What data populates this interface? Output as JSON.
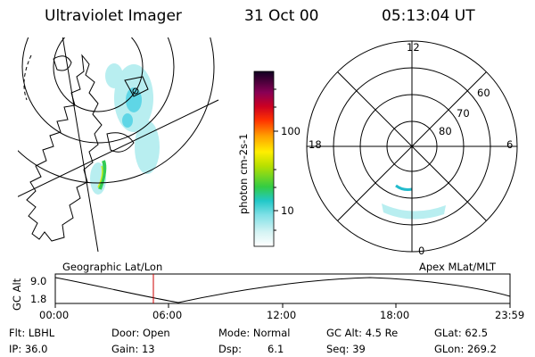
{
  "header": {
    "title": "Ultraviolet Imager",
    "date": "31 Oct 00",
    "time": "05:13:04 UT"
  },
  "colorbar": {
    "ticks": [
      "100",
      "10"
    ],
    "unit_label": "photon cm-2s-1"
  },
  "polar_plot": {
    "mlt_labels": [
      "12",
      "18",
      "6",
      "0"
    ],
    "lat_labels": [
      "60",
      "70",
      "80"
    ]
  },
  "altitude_panel": {
    "ylabel": "GC Alt",
    "y_ticks": [
      "9.0",
      "1.8"
    ],
    "left_caption": "Geographic Lat/Lon",
    "right_caption": "Apex MLat/MLT",
    "time_ticks": [
      "00:00",
      "06:00",
      "12:00",
      "18:00",
      "23:59"
    ]
  },
  "status": {
    "filter": "Flt: LBHL",
    "door": "Door: Open",
    "mode": "Mode: Normal",
    "gc_alt": "GC Alt: 4.5 Re",
    "glat": "GLat: 62.5",
    "ip": "IP: 36.0",
    "gain": "Gain: 13",
    "dsp_label": "Dsp:",
    "dsp_value": "6.1",
    "seq": "Seq: 39",
    "glon": "GLon: 269.2"
  },
  "colors": {
    "line": "#000000",
    "marker": "#cc0000",
    "aurora_faint": "#b8eef0",
    "aurora_mid": "#5fd6e6",
    "aurora_bright": "#33cc55"
  }
}
